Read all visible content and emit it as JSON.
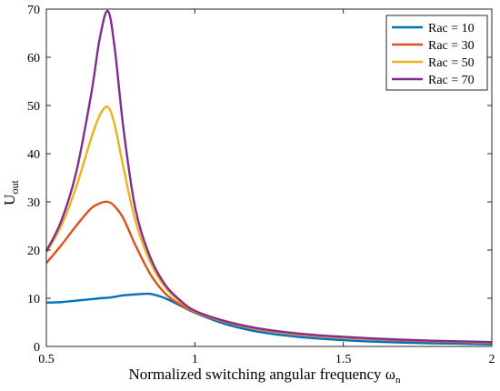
{
  "chart_data": {
    "type": "line",
    "title": "",
    "xlabel": "Normalized switching angular frequency ω",
    "xlabel_sub": "n",
    "ylabel": "U",
    "ylabel_sub": "out",
    "xlim": [
      0.5,
      2
    ],
    "ylim": [
      0,
      70
    ],
    "xticks": [
      0.5,
      1,
      1.5,
      2
    ],
    "xtick_labels": [
      "0.5",
      "1",
      "1.5",
      "2"
    ],
    "yticks": [
      0,
      10,
      20,
      30,
      40,
      50,
      60,
      70
    ],
    "ytick_labels": [
      "0",
      "10",
      "20",
      "30",
      "40",
      "50",
      "60",
      "70"
    ],
    "grid": false,
    "legend_position": "top-right",
    "x": [
      0.5,
      0.55,
      0.6,
      0.65,
      0.68,
      0.707,
      0.73,
      0.76,
      0.8,
      0.85,
      0.9,
      0.95,
      1.0,
      1.1,
      1.2,
      1.3,
      1.4,
      1.5,
      1.6,
      1.7,
      1.8,
      1.9,
      2.0
    ],
    "series": [
      {
        "name": "Rac = 10",
        "color": "#0072BD",
        "values": [
          9.1,
          9.2,
          9.5,
          9.8,
          10.0,
          10.1,
          10.3,
          10.6,
          10.8,
          10.9,
          10.0,
          8.5,
          7.0,
          4.7,
          3.2,
          2.3,
          1.7,
          1.3,
          1.0,
          0.8,
          0.65,
          0.55,
          0.45
        ]
      },
      {
        "name": "Rac = 30",
        "color": "#D95319",
        "values": [
          17.3,
          21.0,
          25.0,
          28.6,
          29.7,
          30.0,
          29.1,
          26.5,
          21.0,
          15.0,
          11.0,
          8.7,
          7.1,
          5.1,
          3.7,
          2.8,
          2.2,
          1.8,
          1.5,
          1.25,
          1.05,
          0.9,
          0.75
        ]
      },
      {
        "name": "Rac = 50",
        "color": "#EDB120",
        "values": [
          19.5,
          25.0,
          33.0,
          43.0,
          48.0,
          49.7,
          46.0,
          37.0,
          26.0,
          17.5,
          12.3,
          9.3,
          7.3,
          5.2,
          3.8,
          2.9,
          2.3,
          1.9,
          1.6,
          1.35,
          1.15,
          1.0,
          0.85
        ]
      },
      {
        "name": "Rac = 70",
        "color": "#7E2F8E",
        "values": [
          19.8,
          26.0,
          36.0,
          52.0,
          64.0,
          69.6,
          62.0,
          45.0,
          28.5,
          18.5,
          12.8,
          9.6,
          7.4,
          5.3,
          3.9,
          3.0,
          2.4,
          2.0,
          1.65,
          1.4,
          1.2,
          1.05,
          0.9
        ]
      }
    ]
  }
}
